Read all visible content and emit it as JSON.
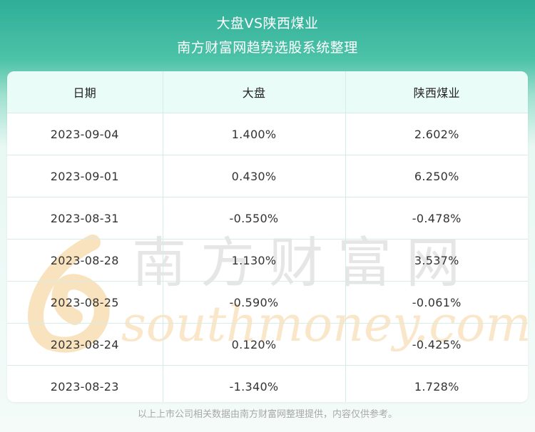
{
  "header": {
    "title": "大盘VS陕西煤业",
    "subtitle": "南方财富网趋势选股系统整理"
  },
  "table": {
    "columns": [
      "日期",
      "大盘",
      "陕西煤业"
    ],
    "rows": [
      [
        "2023-09-04",
        "1.400%",
        "2.602%"
      ],
      [
        "2023-09-01",
        "0.430%",
        "6.250%"
      ],
      [
        "2023-08-31",
        "-0.550%",
        "-0.478%"
      ],
      [
        "2023-08-28",
        "1.130%",
        "3.537%"
      ],
      [
        "2023-08-25",
        "-0.590%",
        "-0.061%"
      ],
      [
        "2023-08-24",
        "0.120%",
        "-0.425%"
      ],
      [
        "2023-08-23",
        "-1.340%",
        "1.728%"
      ]
    ]
  },
  "watermark": {
    "cn_text": "南方财富网",
    "en_text": "southmoney.com"
  },
  "footer": {
    "note": "以上上市公司相关数据由南方财富网整理提供，内容仅供参考。"
  },
  "colors": {
    "header_teal": "#2fae98",
    "header_row_bg": "#eafcf8",
    "grid_line": "#d6ece6",
    "watermark_orange": "#f5c98a",
    "watermark_gray": "#cfcfcf"
  }
}
